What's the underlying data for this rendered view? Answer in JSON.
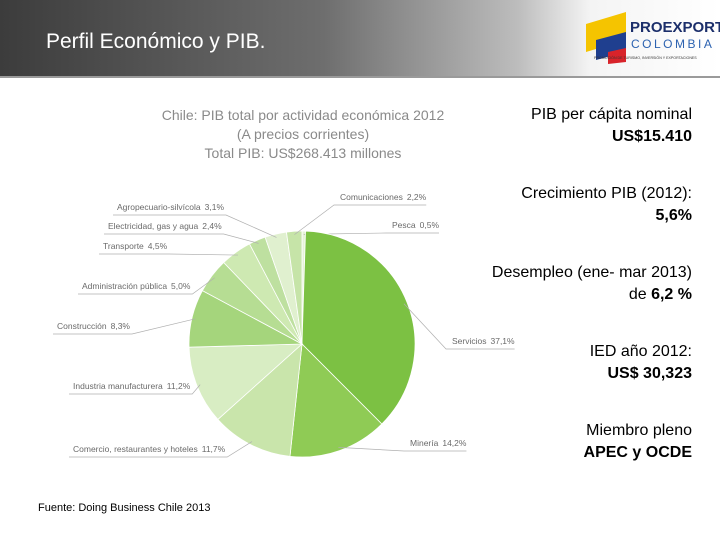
{
  "header": {
    "title": "Perfil Económico y PIB.",
    "logo_top": "PROEXPORT",
    "logo_bottom": "COLOMBIA",
    "logo_tagline": "PROMOCIÓN DE TURISMO, INVERSIÓN Y EXPORTACIONES"
  },
  "chart_data": {
    "type": "pie",
    "title": [
      "Chile: PIB total por actividad económica 2012",
      "(A precios corrientes)",
      "Total PIB: US$268.413 millones"
    ],
    "categories": [
      "Pesca",
      "Servicios",
      "Minería",
      "Comercio, restaurantes y hoteles",
      "Industria manufacturera",
      "Construcción",
      "Administración pública",
      "Transporte",
      "Electricidad, gas y agua",
      "Agropecuario-silvícola",
      "Comunicaciones"
    ],
    "values": [
      0.5,
      37.1,
      14.2,
      11.7,
      11.2,
      8.3,
      5.0,
      4.5,
      2.4,
      3.1,
      2.2
    ],
    "value_labels": [
      "0,5%",
      "37,1%",
      "14,2%",
      "11,7%",
      "11,2%",
      "8,3%",
      "5,0%",
      "4,5%",
      "2,4%",
      "3,1%",
      "2,2%"
    ],
    "colors": [
      "#e6f3d8",
      "#7cc143",
      "#8fcb55",
      "#c9e5ab",
      "#d8edc3",
      "#a5d57c",
      "#b6dd93",
      "#cee9b2",
      "#bee0a0",
      "#e0f0cf",
      "#c6e4a8"
    ]
  },
  "facts": [
    {
      "label": "PIB per cápita  nominal",
      "value": "US$15.410"
    },
    {
      "label": "Crecimiento PIB (2012):",
      "value": "5,6%"
    },
    {
      "label": "Desempleo (ene- mar 2013) de",
      "value": "6,2 %"
    },
    {
      "label": "IED año 2012:",
      "value": "US$ 30,323"
    },
    {
      "label": "Miembro pleno",
      "value": "APEC y OCDE"
    }
  ],
  "source": "Fuente:  Doing Business Chile 2013"
}
